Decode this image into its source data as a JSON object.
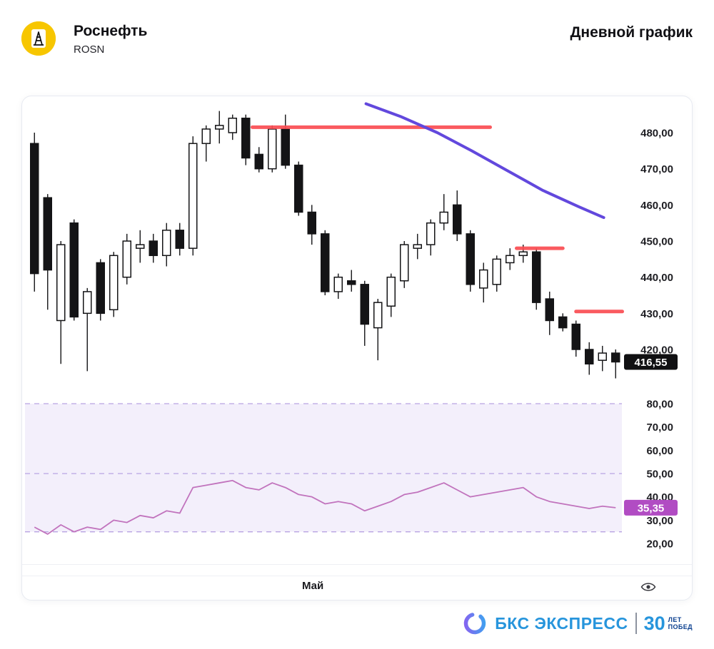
{
  "header": {
    "title": "Роснефть",
    "ticker": "ROSN",
    "chart_type_label": "Дневной график"
  },
  "x_axis_label": "Май",
  "badges": {
    "price": "416,55",
    "rsi": "35,35"
  },
  "footer": {
    "brand": "БКС ЭКСПРЕСС",
    "badge_number": "30",
    "badge_line1": "ЛЕТ",
    "badge_line2": "ПОБЕД"
  },
  "colors": {
    "logo_bg": "#f7c600",
    "candle_up_fill": "#ffffff",
    "candle_down_fill": "#141416",
    "candle_stroke": "#141416",
    "resistance": "#fa4d52",
    "ma": "#6248dd",
    "rsi_line": "#c173bd",
    "rsi_band_fill": "#efe9f9",
    "rsi_level_stroke": "#b9a3e2",
    "price_badge_bg": "#101012",
    "rsi_badge_bg": "#b14cc3",
    "brand_blue": "#2795dc"
  },
  "chart_data": {
    "type": "candlestick",
    "title": "Роснефть (ROSN) — дневной график",
    "x_axis": {
      "label": "Май"
    },
    "price_panel": {
      "ylim": [
        412,
        488
      ],
      "ticks": [
        480,
        470,
        460,
        450,
        440,
        430,
        420
      ],
      "tick_labels": [
        "480,00",
        "470,00",
        "460,00",
        "450,00",
        "440,00",
        "430,00",
        "420,00"
      ],
      "last_price": 416.55,
      "last_price_label": "416,55",
      "candles_ohlc": [
        [
          477,
          480,
          436,
          441
        ],
        [
          462,
          463,
          431,
          442
        ],
        [
          428,
          450,
          416,
          449
        ],
        [
          455,
          456,
          428,
          429
        ],
        [
          430,
          437,
          414,
          436
        ],
        [
          444,
          445,
          428,
          430
        ],
        [
          431,
          447,
          429,
          446
        ],
        [
          440,
          452,
          438,
          450
        ],
        [
          448,
          453,
          444,
          449
        ],
        [
          450,
          452,
          444,
          446
        ],
        [
          446,
          455,
          443,
          453
        ],
        [
          453,
          455,
          446,
          448
        ],
        [
          448,
          479,
          446,
          477
        ],
        [
          477,
          482,
          472,
          481
        ],
        [
          481,
          486,
          477,
          482
        ],
        [
          480,
          485,
          478,
          484
        ],
        [
          484,
          485,
          471,
          473
        ],
        [
          474,
          476,
          469,
          470
        ],
        [
          470,
          482,
          469,
          481
        ],
        [
          481,
          485,
          470,
          471
        ],
        [
          471,
          472,
          457,
          458
        ],
        [
          458,
          460,
          449,
          452
        ],
        [
          452,
          453,
          435,
          436
        ],
        [
          436,
          441,
          434,
          440
        ],
        [
          439,
          442,
          436,
          438
        ],
        [
          438,
          439,
          421,
          427
        ],
        [
          426,
          434,
          417,
          433
        ],
        [
          432,
          441,
          429,
          440
        ],
        [
          439,
          450,
          437,
          449
        ],
        [
          448,
          452,
          445,
          449
        ],
        [
          449,
          456,
          446,
          455
        ],
        [
          455,
          463,
          453,
          458
        ],
        [
          460,
          464,
          450,
          452
        ],
        [
          452,
          453,
          436,
          438
        ],
        [
          437,
          444,
          433,
          442
        ],
        [
          438,
          446,
          436,
          445
        ],
        [
          444,
          448,
          442,
          446
        ],
        [
          446,
          449,
          444,
          447
        ],
        [
          447,
          448,
          431,
          433
        ],
        [
          434,
          436,
          424,
          428
        ],
        [
          429,
          430,
          425,
          426
        ],
        [
          427,
          428,
          418,
          420
        ],
        [
          420,
          422,
          413,
          416
        ],
        [
          417,
          421,
          414,
          419
        ],
        [
          419,
          420,
          412,
          416.55
        ]
      ],
      "resistance_lines": [
        {
          "from_candle": 17,
          "to_candle": 35,
          "price": 481.5
        },
        {
          "from_candle": 37,
          "to_candle": 40.5,
          "price": 448
        },
        {
          "from_candle": 41.5,
          "to_candle": 45,
          "price": 430.5
        }
      ],
      "trend_curve": [
        [
          25.6,
          488
        ],
        [
          28.2,
          484.5
        ],
        [
          31,
          480
        ],
        [
          33.6,
          475
        ],
        [
          36.3,
          469.5
        ],
        [
          39,
          464
        ],
        [
          41.7,
          459.5
        ],
        [
          43.6,
          456.5
        ]
      ]
    },
    "rsi_panel": {
      "ylim": [
        15,
        85
      ],
      "ticks": [
        80,
        70,
        60,
        50,
        40,
        30,
        20
      ],
      "tick_labels": [
        "80,00",
        "70,00",
        "60,00",
        "50,00",
        "40,00",
        "30,00",
        "20,00"
      ],
      "levels": [
        80,
        50,
        25
      ],
      "band": [
        25,
        80
      ],
      "last_value": 35.35,
      "last_value_label": "35,35",
      "values": [
        27,
        24,
        28,
        25,
        27,
        26,
        30,
        29,
        32,
        31,
        34,
        33,
        44,
        45,
        46,
        47,
        44,
        43,
        46,
        44,
        41,
        40,
        37,
        38,
        37,
        34,
        36,
        38,
        41,
        42,
        44,
        46,
        43,
        40,
        41,
        42,
        43,
        44,
        40,
        38,
        37,
        36,
        35,
        36,
        35.35
      ]
    }
  }
}
